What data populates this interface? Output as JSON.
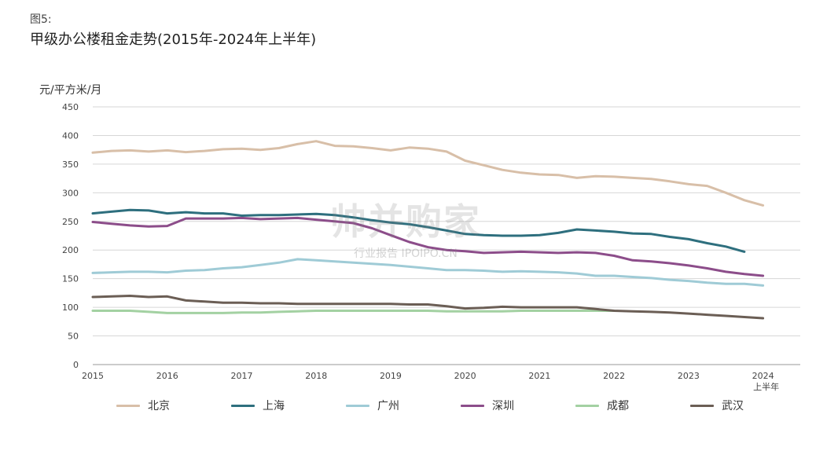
{
  "figure": {
    "label": "图5:",
    "title": "甲级办公楼租金走势(2015年-2024年上半年)",
    "unit": "元/平方米/月"
  },
  "watermark": {
    "main": "帅并购家",
    "sub": "行业报告 IPOIPO.CN"
  },
  "chart_data": {
    "type": "line",
    "title": "甲级办公楼租金走势(2015年-2024年上半年)",
    "ylabel": "元/平方米/月",
    "ylim": [
      0,
      450
    ],
    "yticks": [
      0,
      50,
      100,
      150,
      200,
      250,
      300,
      350,
      400,
      450
    ],
    "xlim": [
      2015,
      2024.5
    ],
    "xticks": [
      {
        "value": 2015,
        "label": "2015"
      },
      {
        "value": 2016,
        "label": "2016"
      },
      {
        "value": 2017,
        "label": "2017"
      },
      {
        "value": 2018,
        "label": "2018"
      },
      {
        "value": 2019,
        "label": "2019"
      },
      {
        "value": 2020,
        "label": "2020"
      },
      {
        "value": 2021,
        "label": "2021"
      },
      {
        "value": 2022,
        "label": "2022"
      },
      {
        "value": 2023,
        "label": "2023"
      },
      {
        "value": 2024,
        "label": "2024"
      }
    ],
    "last_tick_sublabel": "上半年",
    "grid": "horizontal",
    "legend_position": "bottom",
    "series": [
      {
        "name": "北京",
        "color": "#d8bfa8",
        "points": [
          [
            2015,
            370
          ],
          [
            2015.25,
            373
          ],
          [
            2015.5,
            374
          ],
          [
            2015.75,
            372
          ],
          [
            2016,
            374
          ],
          [
            2016.25,
            371
          ],
          [
            2016.5,
            373
          ],
          [
            2016.75,
            376
          ],
          [
            2017,
            377
          ],
          [
            2017.25,
            375
          ],
          [
            2017.5,
            378
          ],
          [
            2017.75,
            385
          ],
          [
            2018,
            390
          ],
          [
            2018.25,
            382
          ],
          [
            2018.5,
            381
          ],
          [
            2018.75,
            378
          ],
          [
            2019,
            374
          ],
          [
            2019.25,
            379
          ],
          [
            2019.5,
            377
          ],
          [
            2019.75,
            372
          ],
          [
            2020,
            356
          ],
          [
            2020.25,
            348
          ],
          [
            2020.5,
            340
          ],
          [
            2020.75,
            335
          ],
          [
            2021,
            332
          ],
          [
            2021.25,
            331
          ],
          [
            2021.5,
            326
          ],
          [
            2021.75,
            329
          ],
          [
            2022,
            328
          ],
          [
            2022.25,
            326
          ],
          [
            2022.5,
            324
          ],
          [
            2022.75,
            320
          ],
          [
            2023,
            315
          ],
          [
            2023.25,
            312
          ],
          [
            2023.5,
            300
          ],
          [
            2023.75,
            287
          ],
          [
            2024,
            278
          ]
        ]
      },
      {
        "name": "上海",
        "color": "#2e6f7e",
        "points": [
          [
            2015,
            264
          ],
          [
            2015.25,
            267
          ],
          [
            2015.5,
            270
          ],
          [
            2015.75,
            269
          ],
          [
            2016,
            264
          ],
          [
            2016.25,
            266
          ],
          [
            2016.5,
            264
          ],
          [
            2016.75,
            264
          ],
          [
            2017,
            260
          ],
          [
            2017.25,
            261
          ],
          [
            2017.5,
            261
          ],
          [
            2017.75,
            262
          ],
          [
            2018,
            263
          ],
          [
            2018.25,
            261
          ],
          [
            2018.5,
            257
          ],
          [
            2018.75,
            252
          ],
          [
            2019,
            248
          ],
          [
            2019.25,
            245
          ],
          [
            2019.5,
            240
          ],
          [
            2019.75,
            234
          ],
          [
            2020,
            228
          ],
          [
            2020.25,
            226
          ],
          [
            2020.5,
            225
          ],
          [
            2020.75,
            225
          ],
          [
            2021,
            226
          ],
          [
            2021.25,
            230
          ],
          [
            2021.5,
            236
          ],
          [
            2021.75,
            234
          ],
          [
            2022,
            232
          ],
          [
            2022.25,
            229
          ],
          [
            2022.5,
            228
          ],
          [
            2022.75,
            223
          ],
          [
            2023,
            219
          ],
          [
            2023.25,
            212
          ],
          [
            2023.5,
            206
          ],
          [
            2023.75,
            197
          ]
        ]
      },
      {
        "name": "广州",
        "color": "#9fcbd6",
        "points": [
          [
            2015,
            160
          ],
          [
            2015.25,
            161
          ],
          [
            2015.5,
            162
          ],
          [
            2015.75,
            162
          ],
          [
            2016,
            161
          ],
          [
            2016.25,
            164
          ],
          [
            2016.5,
            165
          ],
          [
            2016.75,
            168
          ],
          [
            2017,
            170
          ],
          [
            2017.25,
            174
          ],
          [
            2017.5,
            178
          ],
          [
            2017.75,
            184
          ],
          [
            2018,
            182
          ],
          [
            2018.25,
            180
          ],
          [
            2018.5,
            178
          ],
          [
            2018.75,
            176
          ],
          [
            2019,
            174
          ],
          [
            2019.25,
            171
          ],
          [
            2019.5,
            168
          ],
          [
            2019.75,
            165
          ],
          [
            2020,
            165
          ],
          [
            2020.25,
            164
          ],
          [
            2020.5,
            162
          ],
          [
            2020.75,
            163
          ],
          [
            2021,
            162
          ],
          [
            2021.25,
            161
          ],
          [
            2021.5,
            159
          ],
          [
            2021.75,
            155
          ],
          [
            2022,
            155
          ],
          [
            2022.25,
            153
          ],
          [
            2022.5,
            151
          ],
          [
            2022.75,
            148
          ],
          [
            2023,
            146
          ],
          [
            2023.25,
            143
          ],
          [
            2023.5,
            141
          ],
          [
            2023.75,
            141
          ],
          [
            2024,
            138
          ]
        ]
      },
      {
        "name": "深圳",
        "color": "#8c4d8a",
        "points": [
          [
            2015,
            249
          ],
          [
            2015.25,
            246
          ],
          [
            2015.5,
            243
          ],
          [
            2015.75,
            241
          ],
          [
            2016,
            242
          ],
          [
            2016.25,
            255
          ],
          [
            2016.5,
            255
          ],
          [
            2016.75,
            255
          ],
          [
            2017,
            256
          ],
          [
            2017.25,
            254
          ],
          [
            2017.5,
            255
          ],
          [
            2017.75,
            256
          ],
          [
            2018,
            253
          ],
          [
            2018.25,
            250
          ],
          [
            2018.5,
            247
          ],
          [
            2018.75,
            238
          ],
          [
            2019,
            226
          ],
          [
            2019.25,
            214
          ],
          [
            2019.5,
            205
          ],
          [
            2019.75,
            200
          ],
          [
            2020,
            198
          ],
          [
            2020.25,
            195
          ],
          [
            2020.5,
            196
          ],
          [
            2020.75,
            197
          ],
          [
            2021,
            196
          ],
          [
            2021.25,
            195
          ],
          [
            2021.5,
            196
          ],
          [
            2021.75,
            195
          ],
          [
            2022,
            190
          ],
          [
            2022.25,
            182
          ],
          [
            2022.5,
            180
          ],
          [
            2022.75,
            177
          ],
          [
            2023,
            173
          ],
          [
            2023.25,
            168
          ],
          [
            2023.5,
            162
          ],
          [
            2023.75,
            158
          ],
          [
            2024,
            155
          ]
        ]
      },
      {
        "name": "成都",
        "color": "#a3d1a2",
        "points": [
          [
            2015,
            94
          ],
          [
            2015.25,
            94
          ],
          [
            2015.5,
            94
          ],
          [
            2015.75,
            92
          ],
          [
            2016,
            90
          ],
          [
            2016.25,
            90
          ],
          [
            2016.5,
            90
          ],
          [
            2016.75,
            90
          ],
          [
            2017,
            91
          ],
          [
            2017.25,
            91
          ],
          [
            2017.5,
            92
          ],
          [
            2017.75,
            93
          ],
          [
            2018,
            94
          ],
          [
            2018.25,
            94
          ],
          [
            2018.5,
            94
          ],
          [
            2018.75,
            94
          ],
          [
            2019,
            94
          ],
          [
            2019.25,
            94
          ],
          [
            2019.5,
            94
          ],
          [
            2019.75,
            93
          ],
          [
            2020,
            93
          ],
          [
            2020.25,
            93
          ],
          [
            2020.5,
            93
          ],
          [
            2020.75,
            94
          ],
          [
            2021,
            94
          ],
          [
            2021.25,
            94
          ],
          [
            2021.5,
            94
          ],
          [
            2021.75,
            94
          ],
          [
            2022,
            94
          ]
        ]
      },
      {
        "name": "武汉",
        "color": "#6b5e55",
        "points": [
          [
            2015,
            118
          ],
          [
            2015.25,
            119
          ],
          [
            2015.5,
            120
          ],
          [
            2015.75,
            118
          ],
          [
            2016,
            119
          ],
          [
            2016.25,
            112
          ],
          [
            2016.5,
            110
          ],
          [
            2016.75,
            108
          ],
          [
            2017,
            108
          ],
          [
            2017.25,
            107
          ],
          [
            2017.5,
            107
          ],
          [
            2017.75,
            106
          ],
          [
            2018,
            106
          ],
          [
            2018.25,
            106
          ],
          [
            2018.5,
            106
          ],
          [
            2018.75,
            106
          ],
          [
            2019,
            106
          ],
          [
            2019.25,
            105
          ],
          [
            2019.5,
            105
          ],
          [
            2019.75,
            102
          ],
          [
            2020,
            98
          ],
          [
            2020.25,
            99
          ],
          [
            2020.5,
            101
          ],
          [
            2020.75,
            100
          ],
          [
            2021,
            100
          ],
          [
            2021.25,
            100
          ],
          [
            2021.5,
            100
          ],
          [
            2021.75,
            97
          ],
          [
            2022,
            94
          ],
          [
            2022.25,
            93
          ],
          [
            2022.5,
            92
          ],
          [
            2022.75,
            91
          ],
          [
            2023,
            89
          ],
          [
            2023.25,
            87
          ],
          [
            2023.5,
            85
          ],
          [
            2023.75,
            83
          ],
          [
            2024,
            81
          ]
        ]
      }
    ]
  }
}
